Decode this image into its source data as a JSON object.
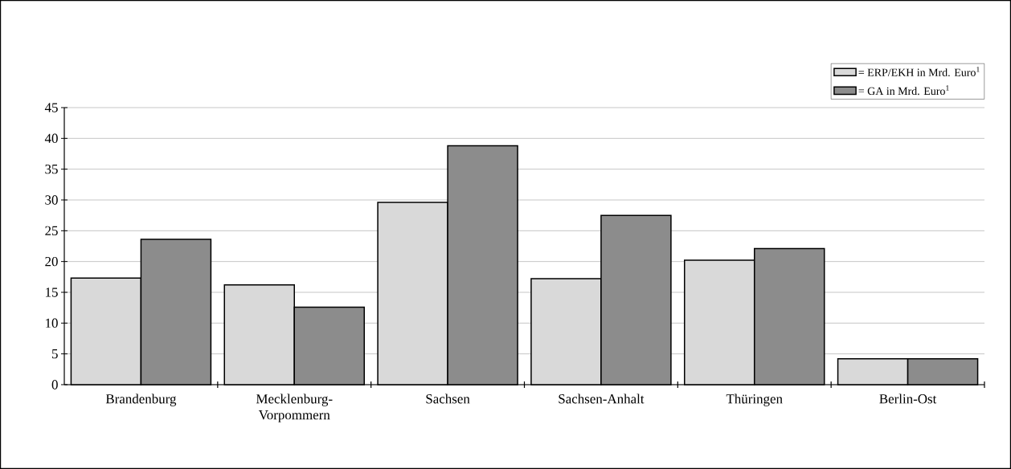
{
  "chart_data": {
    "type": "bar",
    "categories": [
      "Brandenburg",
      "Mecklenburg-Vorpommern",
      "Sachsen",
      "Sachsen-Anhalt",
      "Thüringen",
      "Berlin-Ost"
    ],
    "series": [
      {
        "name": "= ERP/EKH in Mrd. Euro$^{1}$",
        "color": "#d9d9d9",
        "values": [
          17.3,
          16.2,
          29.6,
          17.2,
          20.2,
          4.2
        ]
      },
      {
        "name": "= GA in Mrd. Euro$^{1}$",
        "color": "#8c8c8c",
        "values": [
          23.6,
          12.6,
          38.8,
          27.5,
          22.1,
          4.2
        ]
      }
    ],
    "ylim": [
      0,
      45
    ],
    "yticks": [
      0,
      5,
      10,
      15,
      20,
      25,
      30,
      35,
      40,
      45
    ],
    "grid": "y",
    "legend": "top right"
  }
}
